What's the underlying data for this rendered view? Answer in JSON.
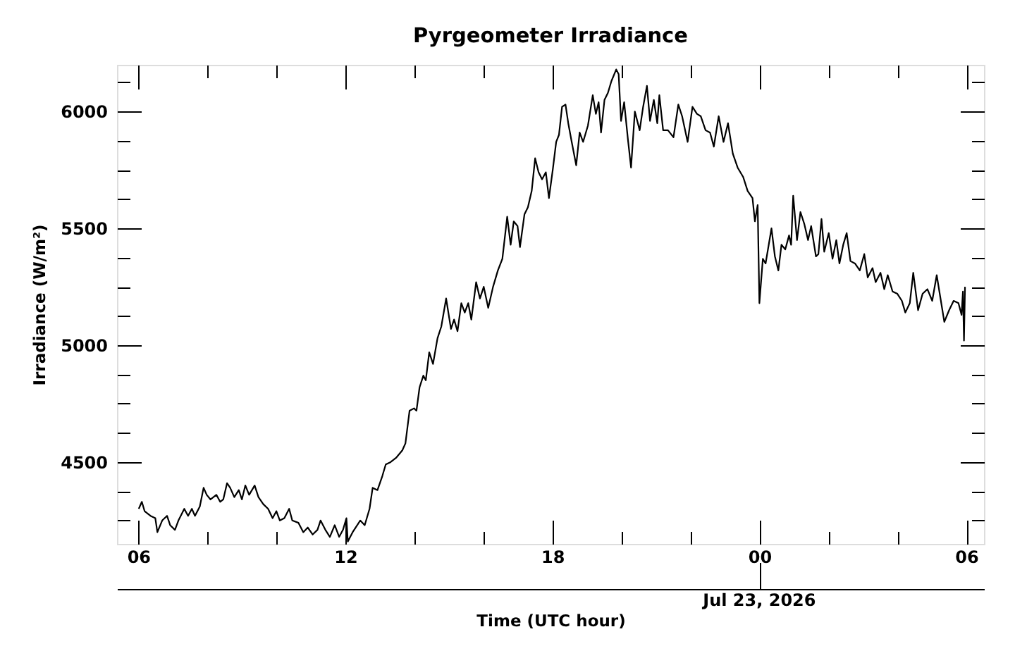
{
  "chart_data": {
    "type": "line",
    "title": "Pyrgeometer Irradiance",
    "xlabel": "Time (UTC hour)",
    "ylabel": "Irradiance (W/m²)",
    "xlim": [
      5.38,
      30.51
    ],
    "xticks": [
      {
        "value": 6,
        "label": "06"
      },
      12,
      18,
      {
        "value": 24,
        "label": "00"
      },
      {
        "value": 30,
        "label": "06"
      }
    ],
    "ylim": [
      4150,
      6200
    ],
    "yticks": [
      4500,
      5000,
      5500,
      6000
    ],
    "grid": false,
    "annotations": [
      {
        "text": "Jul 23, 2026",
        "x": 24
      }
    ],
    "x": [
      6.01,
      6.1,
      6.18,
      6.35,
      6.49,
      6.55,
      6.69,
      6.83,
      6.92,
      7.06,
      7.16,
      7.33,
      7.44,
      7.55,
      7.64,
      7.78,
      7.89,
      7.98,
      8.09,
      8.26,
      8.37,
      8.46,
      8.57,
      8.66,
      8.78,
      8.91,
      9.0,
      9.1,
      9.21,
      9.37,
      9.48,
      9.62,
      9.76,
      9.89,
      10.0,
      10.1,
      10.23,
      10.37,
      10.46,
      10.64,
      10.78,
      10.91,
      11.05,
      11.19,
      11.28,
      11.42,
      11.55,
      11.69,
      11.82,
      11.93,
      12.03,
      12.07,
      12.21,
      12.43,
      12.56,
      12.7,
      12.79,
      12.93,
      13.07,
      13.17,
      13.31,
      13.48,
      13.65,
      13.74,
      13.86,
      13.99,
      14.06,
      14.15,
      14.26,
      14.33,
      14.43,
      14.54,
      14.67,
      14.78,
      14.92,
      15.06,
      15.15,
      15.25,
      15.36,
      15.46,
      15.56,
      15.65,
      15.79,
      15.9,
      16.01,
      16.14,
      16.28,
      16.42,
      16.55,
      16.69,
      16.79,
      16.88,
      16.99,
      17.06,
      17.19,
      17.29,
      17.4,
      17.5,
      17.6,
      17.7,
      17.81,
      17.9,
      18.01,
      18.11,
      18.19,
      18.28,
      18.38,
      18.46,
      18.56,
      18.69,
      18.79,
      18.89,
      19.03,
      19.17,
      19.26,
      19.34,
      19.41,
      19.51,
      19.61,
      19.71,
      19.85,
      19.92,
      19.99,
      20.08,
      20.19,
      20.28,
      20.39,
      20.53,
      20.63,
      20.74,
      20.83,
      20.94,
      21.04,
      21.1,
      21.21,
      21.35,
      21.51,
      21.65,
      21.76,
      21.92,
      22.06,
      22.19,
      22.3,
      22.44,
      22.57,
      22.68,
      22.82,
      22.96,
      23.09,
      23.23,
      23.37,
      23.53,
      23.66,
      23.8,
      23.87,
      23.95,
      24.0,
      24.1,
      24.18,
      24.35,
      24.45,
      24.55,
      24.64,
      24.75,
      24.86,
      24.92,
      24.98,
      25.09,
      25.19,
      25.3,
      25.41,
      25.5,
      25.64,
      25.71,
      25.8,
      25.88,
      26.01,
      26.12,
      26.23,
      26.32,
      26.43,
      26.53,
      26.64,
      26.77,
      26.91,
      27.04,
      27.14,
      27.28,
      27.37,
      27.51,
      27.62,
      27.72,
      27.86,
      28.0,
      28.13,
      28.23,
      28.36,
      28.46,
      28.6,
      28.73,
      28.87,
      29.01,
      29.14,
      29.25,
      29.36,
      29.5,
      29.63,
      29.77,
      29.86,
      29.9,
      29.93,
      29.96
    ],
    "series": [
      {
        "color": "#000000",
        "values": [
          4300,
          4330,
          4290,
          4270,
          4260,
          4200,
          4250,
          4270,
          4230,
          4210,
          4250,
          4300,
          4270,
          4300,
          4270,
          4310,
          4390,
          4360,
          4340,
          4360,
          4330,
          4340,
          4410,
          4390,
          4350,
          4380,
          4340,
          4400,
          4360,
          4400,
          4350,
          4320,
          4300,
          4260,
          4290,
          4250,
          4260,
          4300,
          4250,
          4240,
          4200,
          4220,
          4190,
          4210,
          4250,
          4210,
          4180,
          4230,
          4180,
          4210,
          4260,
          4160,
          4200,
          4250,
          4230,
          4300,
          4390,
          4380,
          4440,
          4490,
          4500,
          4520,
          4550,
          4580,
          4720,
          4730,
          4720,
          4820,
          4870,
          4850,
          4970,
          4920,
          5030,
          5080,
          5200,
          5070,
          5110,
          5060,
          5180,
          5140,
          5180,
          5110,
          5270,
          5200,
          5250,
          5160,
          5250,
          5320,
          5370,
          5550,
          5430,
          5530,
          5510,
          5420,
          5560,
          5590,
          5660,
          5800,
          5740,
          5710,
          5740,
          5630,
          5750,
          5870,
          5900,
          6020,
          6030,
          5950,
          5870,
          5770,
          5910,
          5870,
          5940,
          6070,
          5990,
          6040,
          5910,
          6050,
          6080,
          6130,
          6180,
          6160,
          5960,
          6040,
          5880,
          5760,
          6000,
          5920,
          6020,
          6110,
          5960,
          6050,
          5950,
          6070,
          5920,
          5920,
          5890,
          6030,
          5980,
          5870,
          6020,
          5990,
          5980,
          5920,
          5910,
          5850,
          5980,
          5870,
          5950,
          5820,
          5760,
          5720,
          5660,
          5630,
          5530,
          5600,
          5180,
          5370,
          5350,
          5500,
          5380,
          5320,
          5430,
          5410,
          5470,
          5430,
          5640,
          5450,
          5570,
          5520,
          5450,
          5510,
          5380,
          5390,
          5540,
          5400,
          5480,
          5370,
          5450,
          5350,
          5430,
          5480,
          5360,
          5350,
          5320,
          5390,
          5290,
          5330,
          5270,
          5310,
          5240,
          5300,
          5230,
          5220,
          5190,
          5140,
          5180,
          5310,
          5150,
          5220,
          5240,
          5190,
          5300,
          5200,
          5100,
          5150,
          5190,
          5180,
          5130,
          5230,
          5020,
          5250
        ]
      }
    ]
  }
}
